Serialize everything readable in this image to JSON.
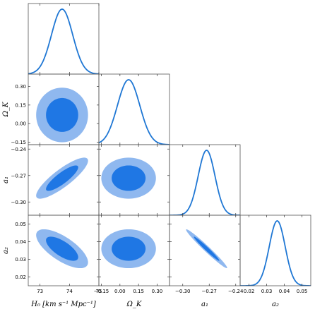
{
  "chart_data": {
    "type": "triangle",
    "colors": {
      "line": "#1f77d4",
      "fill_inner": "#1f77e4",
      "fill_outer": "#8fb8ef",
      "frame": "#555555"
    },
    "params": [
      {
        "key": "H0",
        "label": "H₀ [km s⁻¹ Mpc⁻¹]",
        "range": [
          72.6,
          75.0
        ],
        "ticks": [
          73,
          74,
          75
        ],
        "tick_labels": [
          "73",
          "74",
          "75"
        ],
        "mean": 73.75,
        "sd": 0.36
      },
      {
        "key": "OmegaK",
        "label": "Ω_K",
        "range": [
          -0.17,
          0.4
        ],
        "ticks": [
          -0.15,
          0.0,
          0.15,
          0.3
        ],
        "tick_labels": [
          "−0.15",
          "0.00",
          "0.15",
          "0.30"
        ],
        "mean": 0.07,
        "sd": 0.09
      },
      {
        "key": "a1",
        "label": "a₁",
        "range": [
          -0.315,
          -0.235
        ],
        "ticks": [
          -0.3,
          -0.27,
          -0.24
        ],
        "tick_labels": [
          "−0.30",
          "−0.27",
          "−0.24"
        ],
        "mean": -0.273,
        "sd": 0.0095
      },
      {
        "key": "a2",
        "label": "a₂",
        "range": [
          0.015,
          0.055
        ],
        "ticks": [
          0.02,
          0.03,
          0.04,
          0.05
        ],
        "tick_labels": [
          "0.02",
          "0.03",
          "0.04",
          "0.05"
        ],
        "mean": 0.036,
        "sd": 0.0045
      }
    ],
    "correlations": {
      "H0-OmegaK": 0.0,
      "H0-a1": 0.85,
      "OmegaK-a1": 0.0,
      "H0-a2": -0.7,
      "OmegaK-a2": 0.0,
      "a1-a2": -0.98
    },
    "contour_levels": [
      "1-sigma",
      "2-sigma"
    ]
  }
}
